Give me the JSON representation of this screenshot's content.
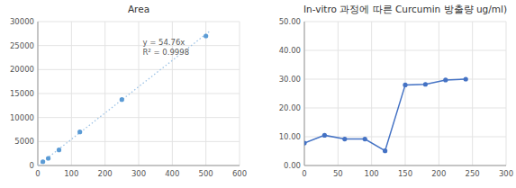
{
  "chart_data": [
    {
      "type": "scatter",
      "title": "Area",
      "x": [
        15,
        31,
        63,
        125,
        250,
        500
      ],
      "values": [
        800,
        1500,
        3250,
        7000,
        13750,
        27000
      ],
      "color": "#5b9bd5",
      "marker": "o",
      "trendline": {
        "slope": 54.76,
        "x": [
          0,
          510
        ],
        "color": "#9dc3e6",
        "line_style": "dotted"
      },
      "annotations": [
        "y = 54.76x",
        "R² = 0.9998"
      ],
      "xlim": [
        0,
        600
      ],
      "ylim": [
        0,
        30000
      ],
      "xticks": [
        0,
        100,
        200,
        300,
        400,
        500,
        600
      ],
      "yticks": [
        0,
        5000,
        10000,
        15000,
        20000,
        25000,
        30000
      ],
      "grid": true
    },
    {
      "type": "line",
      "title": "In-vitro 과정에 따른 Curcumin 방출량 ug/ml)",
      "x": [
        0,
        30,
        60,
        90,
        120,
        150,
        180,
        210,
        240
      ],
      "values": [
        7.8,
        10.5,
        9.2,
        9.2,
        5.1,
        28.0,
        28.2,
        29.7,
        30.0
      ],
      "color": "#4472c4",
      "marker": "o",
      "xlim": [
        0,
        300
      ],
      "ylim": [
        0,
        50
      ],
      "xticks": [
        0,
        50,
        100,
        150,
        200,
        250,
        300
      ],
      "yticks": [
        {
          "value": 0.0,
          "label": "0.00"
        },
        {
          "value": 10.0,
          "label": "10.00"
        },
        {
          "value": 20.0,
          "label": "20.00"
        },
        {
          "value": 30.0,
          "label": "30.00"
        },
        {
          "value": 40.0,
          "label": "40.00"
        },
        {
          "value": 50.0,
          "label": "50.00"
        }
      ],
      "grid": true
    }
  ]
}
